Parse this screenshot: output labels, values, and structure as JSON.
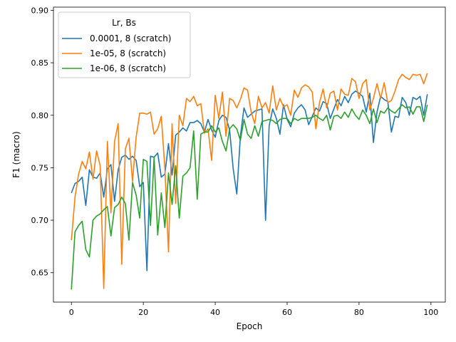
{
  "chart_data": {
    "type": "line",
    "xlabel": "Epoch",
    "ylabel": "F1 (macro)",
    "xlim": [
      -5,
      104
    ],
    "ylim": [
      0.622,
      0.903
    ],
    "xticks": [
      0,
      20,
      40,
      60,
      80,
      100
    ],
    "yticks": [
      0.65,
      0.7,
      0.75,
      0.8,
      0.85,
      0.9
    ],
    "xtick_labels": [
      "0",
      "20",
      "40",
      "60",
      "80",
      "100"
    ],
    "ytick_labels": [
      "0.65",
      "0.70",
      "0.75",
      "0.80",
      "0.85",
      "0.90"
    ],
    "grid": false,
    "legend": {
      "title": "Lr, Bs",
      "position": "top-left"
    },
    "series": [
      {
        "name": "0.0001, 8 (scratch)",
        "color": "#1f77b4",
        "values": [
          0.726,
          0.735,
          0.737,
          0.741,
          0.714,
          0.748,
          0.741,
          0.74,
          0.745,
          0.722,
          0.749,
          0.753,
          0.718,
          0.748,
          0.76,
          0.762,
          0.758,
          0.761,
          0.757,
          0.732,
          0.736,
          0.652,
          0.761,
          0.76,
          0.764,
          0.741,
          0.744,
          0.773,
          0.743,
          0.781,
          0.784,
          0.788,
          0.785,
          0.793,
          0.793,
          0.795,
          0.792,
          0.784,
          0.796,
          0.786,
          0.779,
          0.795,
          0.8,
          0.798,
          0.786,
          0.749,
          0.725,
          0.78,
          0.807,
          0.798,
          0.801,
          0.804,
          0.805,
          0.806,
          0.7,
          0.79,
          0.806,
          0.797,
          0.782,
          0.81,
          0.796,
          0.789,
          0.802,
          0.807,
          0.81,
          0.805,
          0.791,
          0.799,
          0.807,
          0.804,
          0.813,
          0.811,
          0.797,
          0.806,
          0.815,
          0.809,
          0.818,
          0.812,
          0.82,
          0.823,
          0.821,
          0.818,
          0.803,
          0.821,
          0.774,
          0.803,
          0.818,
          0.815,
          0.813,
          0.784,
          0.799,
          0.798,
          0.817,
          0.812,
          0.8,
          0.817,
          0.815,
          0.818,
          0.8,
          0.82
        ]
      },
      {
        "name": "1e-05, 8 (scratch)",
        "color": "#ff7f0e",
        "values": [
          0.681,
          0.722,
          0.744,
          0.756,
          0.749,
          0.765,
          0.739,
          0.766,
          0.752,
          0.635,
          0.775,
          0.707,
          0.775,
          0.792,
          0.658,
          0.768,
          0.778,
          0.737,
          0.779,
          0.802,
          0.802,
          0.801,
          0.803,
          0.782,
          0.787,
          0.799,
          0.749,
          0.67,
          0.792,
          0.716,
          0.8,
          0.79,
          0.816,
          0.813,
          0.818,
          0.809,
          0.811,
          0.783,
          0.787,
          0.757,
          0.819,
          0.797,
          0.822,
          0.78,
          0.816,
          0.814,
          0.807,
          0.815,
          0.826,
          0.824,
          0.803,
          0.792,
          0.818,
          0.807,
          0.812,
          0.802,
          0.828,
          0.805,
          0.816,
          0.808,
          0.81,
          0.8,
          0.824,
          0.817,
          0.826,
          0.829,
          0.827,
          0.822,
          0.787,
          0.812,
          0.825,
          0.807,
          0.821,
          0.823,
          0.805,
          0.825,
          0.82,
          0.819,
          0.835,
          0.832,
          0.816,
          0.83,
          0.834,
          0.805,
          0.816,
          0.83,
          0.816,
          0.831,
          0.812,
          0.814,
          0.823,
          0.834,
          0.839,
          0.836,
          0.834,
          0.839,
          0.838,
          0.839,
          0.83,
          0.84
        ]
      },
      {
        "name": "1e-06, 8 (scratch)",
        "color": "#2ca02c",
        "values": [
          0.634,
          0.689,
          0.695,
          0.699,
          0.672,
          0.665,
          0.7,
          0.704,
          0.706,
          0.71,
          0.713,
          0.685,
          0.712,
          0.715,
          0.722,
          0.716,
          0.681,
          0.736,
          0.724,
          0.702,
          0.758,
          0.756,
          0.695,
          0.76,
          0.686,
          0.726,
          0.693,
          0.745,
          0.715,
          0.752,
          0.702,
          0.742,
          0.745,
          0.75,
          0.785,
          0.72,
          0.782,
          0.784,
          0.784,
          0.79,
          0.784,
          0.788,
          0.775,
          0.766,
          0.787,
          0.791,
          0.787,
          0.776,
          0.796,
          0.782,
          0.778,
          0.79,
          0.78,
          0.794,
          0.795,
          0.796,
          0.795,
          0.792,
          0.796,
          0.797,
          0.797,
          0.792,
          0.797,
          0.795,
          0.797,
          0.797,
          0.797,
          0.798,
          0.8,
          0.797,
          0.795,
          0.8,
          0.786,
          0.799,
          0.8,
          0.797,
          0.803,
          0.798,
          0.806,
          0.8,
          0.796,
          0.805,
          0.8,
          0.792,
          0.806,
          0.793,
          0.804,
          0.802,
          0.807,
          0.804,
          0.802,
          0.806,
          0.81,
          0.807,
          0.808,
          0.801,
          0.808,
          0.808,
          0.794,
          0.81
        ]
      }
    ]
  }
}
